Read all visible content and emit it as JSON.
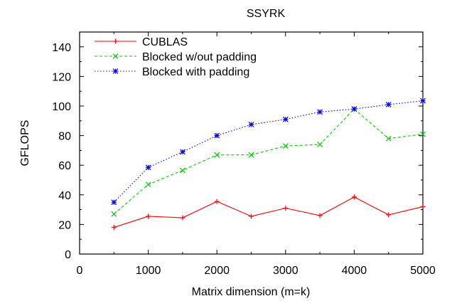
{
  "chart_data": {
    "type": "line",
    "title": "SSYRK",
    "xlabel": "Matrix dimension (m=k)",
    "ylabel": "GFLOPS",
    "xlim": [
      0,
      5000
    ],
    "ylim": [
      0,
      150
    ],
    "xticks": [
      0,
      1000,
      2000,
      3000,
      4000,
      5000
    ],
    "yticks": [
      0,
      20,
      40,
      60,
      80,
      100,
      120,
      140
    ],
    "grid": false,
    "legend_position": "top-left",
    "series": [
      {
        "name": "CUBLAS",
        "color": "#ff0000",
        "marker": "plus",
        "dash": "solid",
        "x": [
          500,
          1000,
          1500,
          2000,
          2500,
          3000,
          3500,
          4000,
          4500,
          5000
        ],
        "y": [
          18,
          25.5,
          24.5,
          35.5,
          25.5,
          31,
          26,
          38.5,
          26.5,
          32
        ]
      },
      {
        "name": "Blocked w/out padding",
        "color": "#00cc00",
        "marker": "cross",
        "dash": "dashed",
        "x": [
          500,
          1000,
          1500,
          2000,
          2500,
          3000,
          3500,
          4000,
          4500,
          5000
        ],
        "y": [
          27,
          47,
          56.5,
          67,
          67,
          73,
          74,
          98,
          78,
          81
        ]
      },
      {
        "name": "Blocked with padding",
        "color": "#0000ff",
        "marker": "star",
        "dash": "dotted",
        "x": [
          500,
          1000,
          1500,
          2000,
          2500,
          3000,
          3500,
          4000,
          4500,
          5000
        ],
        "y": [
          35,
          58.5,
          69,
          80,
          87.5,
          91,
          96,
          98,
          101,
          103.5
        ]
      }
    ]
  }
}
